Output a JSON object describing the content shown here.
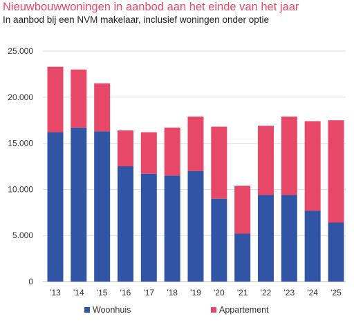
{
  "header": {
    "title": "Nieuwbouwwoningen in aanbod aan het einde van het jaar",
    "subtitle": "In aanbod bij een NVM makelaar, inclusief woningen onder optie"
  },
  "legend": {
    "items": [
      {
        "label": "Woonhuis",
        "color": "#3155a4"
      },
      {
        "label": "Appartement",
        "color": "#e84868"
      }
    ]
  },
  "chart_data": {
    "type": "bar",
    "stacked": true,
    "title": "Nieuwbouwwoningen in aanbod aan het einde van het jaar",
    "subtitle": "In aanbod bij een NVM makelaar, inclusief woningen onder optie",
    "xlabel": "",
    "ylabel": "",
    "categories": [
      "'13",
      "'14",
      "'15",
      "'16",
      "'17",
      "'18",
      "'19",
      "'20",
      "'21",
      "'22",
      "'23",
      "'24",
      "'25"
    ],
    "series": [
      {
        "name": "Woonhuis",
        "color": "#3155a4",
        "values": [
          16200,
          16700,
          16300,
          12500,
          11700,
          11500,
          12000,
          9000,
          5200,
          9400,
          9400,
          7700,
          6400
        ]
      },
      {
        "name": "Appartement",
        "color": "#e84868",
        "values": [
          7100,
          6300,
          5200,
          3900,
          4500,
          5200,
          5900,
          7800,
          5200,
          7500,
          8500,
          9700,
          11100
        ]
      }
    ],
    "ylim": [
      0,
      25000
    ],
    "yticks": [
      0,
      5000,
      10000,
      15000,
      20000,
      25000
    ],
    "ytick_labels": [
      "0",
      "5.000",
      "10.000",
      "15.000",
      "20.000",
      "25.000"
    ],
    "grid": true,
    "legend_position": "bottom"
  }
}
